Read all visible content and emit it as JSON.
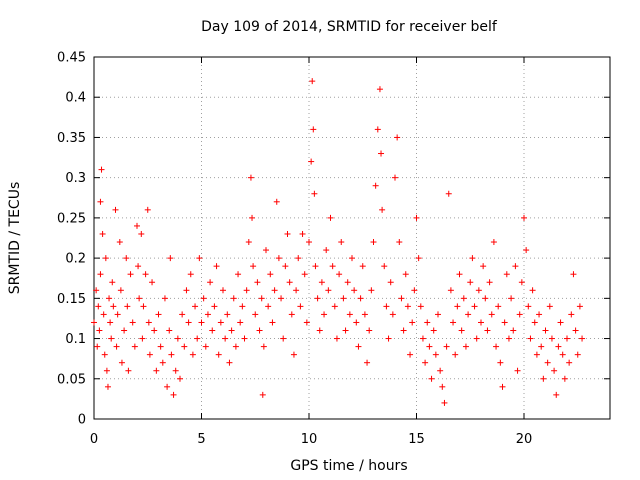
{
  "chart_data": {
    "type": "scatter",
    "title": "Day 109 of 2014, SRMTID for receiver belf",
    "xlabel": "GPS time / hours",
    "ylabel": "SRMTID / TECUs",
    "xlim": [
      0,
      24
    ],
    "ylim": [
      0,
      0.45
    ],
    "xticks": [
      0,
      5,
      10,
      15,
      20
    ],
    "xtick_labels": [
      "0",
      "5",
      "10",
      "15",
      "20"
    ],
    "yticks": [
      0,
      0.05,
      0.1,
      0.15,
      0.2,
      0.25,
      0.3,
      0.35,
      0.4,
      0.45
    ],
    "ytick_labels": [
      "0",
      "0.05",
      "0.1",
      "0.15",
      "0.2",
      "0.25",
      "0.3",
      "0.35",
      "0.4",
      "0.45"
    ],
    "grid": true,
    "marker": "plus",
    "series": [
      {
        "name": "SRMTID",
        "color": "#ff0000",
        "points": [
          [
            0.0,
            0.12
          ],
          [
            0.1,
            0.16
          ],
          [
            0.15,
            0.09
          ],
          [
            0.2,
            0.14
          ],
          [
            0.25,
            0.11
          ],
          [
            0.3,
            0.18
          ],
          [
            0.3,
            0.27
          ],
          [
            0.35,
            0.31
          ],
          [
            0.4,
            0.23
          ],
          [
            0.45,
            0.13
          ],
          [
            0.5,
            0.08
          ],
          [
            0.55,
            0.2
          ],
          [
            0.6,
            0.06
          ],
          [
            0.65,
            0.04
          ],
          [
            0.7,
            0.15
          ],
          [
            0.75,
            0.12
          ],
          [
            0.8,
            0.1
          ],
          [
            0.85,
            0.17
          ],
          [
            0.9,
            0.14
          ],
          [
            1.0,
            0.26
          ],
          [
            1.05,
            0.09
          ],
          [
            1.1,
            0.13
          ],
          [
            1.2,
            0.22
          ],
          [
            1.25,
            0.16
          ],
          [
            1.3,
            0.07
          ],
          [
            1.4,
            0.11
          ],
          [
            1.5,
            0.2
          ],
          [
            1.55,
            0.14
          ],
          [
            1.6,
            0.06
          ],
          [
            1.7,
            0.18
          ],
          [
            1.8,
            0.12
          ],
          [
            1.9,
            0.09
          ],
          [
            2.0,
            0.24
          ],
          [
            2.05,
            0.19
          ],
          [
            2.1,
            0.15
          ],
          [
            2.2,
            0.23
          ],
          [
            2.25,
            0.1
          ],
          [
            2.3,
            0.14
          ],
          [
            2.4,
            0.18
          ],
          [
            2.5,
            0.26
          ],
          [
            2.55,
            0.12
          ],
          [
            2.6,
            0.08
          ],
          [
            2.7,
            0.17
          ],
          [
            2.8,
            0.11
          ],
          [
            2.9,
            0.06
          ],
          [
            3.0,
            0.13
          ],
          [
            3.1,
            0.09
          ],
          [
            3.2,
            0.07
          ],
          [
            3.3,
            0.15
          ],
          [
            3.4,
            0.04
          ],
          [
            3.5,
            0.11
          ],
          [
            3.55,
            0.2
          ],
          [
            3.6,
            0.08
          ],
          [
            3.7,
            0.03
          ],
          [
            3.8,
            0.06
          ],
          [
            3.9,
            0.1
          ],
          [
            4.0,
            0.05
          ],
          [
            4.1,
            0.13
          ],
          [
            4.2,
            0.09
          ],
          [
            4.3,
            0.16
          ],
          [
            4.4,
            0.12
          ],
          [
            4.5,
            0.18
          ],
          [
            4.6,
            0.08
          ],
          [
            4.7,
            0.14
          ],
          [
            4.8,
            0.1
          ],
          [
            4.9,
            0.2
          ],
          [
            5.0,
            0.12
          ],
          [
            5.1,
            0.15
          ],
          [
            5.2,
            0.09
          ],
          [
            5.3,
            0.13
          ],
          [
            5.4,
            0.17
          ],
          [
            5.5,
            0.11
          ],
          [
            5.6,
            0.14
          ],
          [
            5.7,
            0.19
          ],
          [
            5.8,
            0.08
          ],
          [
            5.9,
            0.12
          ],
          [
            6.0,
            0.16
          ],
          [
            6.1,
            0.1
          ],
          [
            6.2,
            0.13
          ],
          [
            6.3,
            0.07
          ],
          [
            6.4,
            0.11
          ],
          [
            6.5,
            0.15
          ],
          [
            6.6,
            0.09
          ],
          [
            6.7,
            0.18
          ],
          [
            6.8,
            0.12
          ],
          [
            6.9,
            0.14
          ],
          [
            7.0,
            0.1
          ],
          [
            7.1,
            0.16
          ],
          [
            7.2,
            0.22
          ],
          [
            7.3,
            0.3
          ],
          [
            7.35,
            0.25
          ],
          [
            7.4,
            0.19
          ],
          [
            7.5,
            0.13
          ],
          [
            7.6,
            0.17
          ],
          [
            7.7,
            0.11
          ],
          [
            7.8,
            0.15
          ],
          [
            7.85,
            0.03
          ],
          [
            7.9,
            0.09
          ],
          [
            8.0,
            0.21
          ],
          [
            8.1,
            0.14
          ],
          [
            8.2,
            0.18
          ],
          [
            8.3,
            0.12
          ],
          [
            8.4,
            0.16
          ],
          [
            8.5,
            0.27
          ],
          [
            8.6,
            0.2
          ],
          [
            8.7,
            0.15
          ],
          [
            8.8,
            0.1
          ],
          [
            8.9,
            0.19
          ],
          [
            9.0,
            0.23
          ],
          [
            9.1,
            0.17
          ],
          [
            9.2,
            0.13
          ],
          [
            9.3,
            0.08
          ],
          [
            9.4,
            0.16
          ],
          [
            9.5,
            0.2
          ],
          [
            9.6,
            0.14
          ],
          [
            9.7,
            0.23
          ],
          [
            9.8,
            0.18
          ],
          [
            9.9,
            0.12
          ],
          [
            10.0,
            0.22
          ],
          [
            10.1,
            0.32
          ],
          [
            10.15,
            0.42
          ],
          [
            10.2,
            0.36
          ],
          [
            10.25,
            0.28
          ],
          [
            10.3,
            0.19
          ],
          [
            10.4,
            0.15
          ],
          [
            10.5,
            0.11
          ],
          [
            10.6,
            0.17
          ],
          [
            10.7,
            0.13
          ],
          [
            10.8,
            0.21
          ],
          [
            10.9,
            0.16
          ],
          [
            11.0,
            0.25
          ],
          [
            11.1,
            0.19
          ],
          [
            11.2,
            0.14
          ],
          [
            11.3,
            0.1
          ],
          [
            11.4,
            0.18
          ],
          [
            11.5,
            0.22
          ],
          [
            11.6,
            0.15
          ],
          [
            11.7,
            0.11
          ],
          [
            11.8,
            0.17
          ],
          [
            11.9,
            0.13
          ],
          [
            12.0,
            0.2
          ],
          [
            12.1,
            0.16
          ],
          [
            12.2,
            0.12
          ],
          [
            12.3,
            0.09
          ],
          [
            12.4,
            0.15
          ],
          [
            12.5,
            0.19
          ],
          [
            12.6,
            0.13
          ],
          [
            12.7,
            0.07
          ],
          [
            12.8,
            0.11
          ],
          [
            12.9,
            0.16
          ],
          [
            13.0,
            0.22
          ],
          [
            13.1,
            0.29
          ],
          [
            13.2,
            0.36
          ],
          [
            13.3,
            0.41
          ],
          [
            13.35,
            0.33
          ],
          [
            13.4,
            0.26
          ],
          [
            13.5,
            0.19
          ],
          [
            13.6,
            0.14
          ],
          [
            13.7,
            0.1
          ],
          [
            13.8,
            0.17
          ],
          [
            13.9,
            0.13
          ],
          [
            14.0,
            0.3
          ],
          [
            14.1,
            0.35
          ],
          [
            14.2,
            0.22
          ],
          [
            14.3,
            0.15
          ],
          [
            14.4,
            0.11
          ],
          [
            14.5,
            0.18
          ],
          [
            14.6,
            0.14
          ],
          [
            14.7,
            0.08
          ],
          [
            14.8,
            0.12
          ],
          [
            14.9,
            0.16
          ],
          [
            15.0,
            0.25
          ],
          [
            15.1,
            0.2
          ],
          [
            15.2,
            0.14
          ],
          [
            15.3,
            0.1
          ],
          [
            15.4,
            0.07
          ],
          [
            15.5,
            0.12
          ],
          [
            15.6,
            0.09
          ],
          [
            15.7,
            0.05
          ],
          [
            15.8,
            0.11
          ],
          [
            15.9,
            0.08
          ],
          [
            16.0,
            0.13
          ],
          [
            16.1,
            0.06
          ],
          [
            16.2,
            0.04
          ],
          [
            16.3,
            0.02
          ],
          [
            16.4,
            0.09
          ],
          [
            16.5,
            0.28
          ],
          [
            16.6,
            0.16
          ],
          [
            16.7,
            0.12
          ],
          [
            16.8,
            0.08
          ],
          [
            16.9,
            0.14
          ],
          [
            17.0,
            0.18
          ],
          [
            17.1,
            0.11
          ],
          [
            17.2,
            0.15
          ],
          [
            17.3,
            0.09
          ],
          [
            17.4,
            0.13
          ],
          [
            17.5,
            0.17
          ],
          [
            17.6,
            0.2
          ],
          [
            17.7,
            0.14
          ],
          [
            17.8,
            0.1
          ],
          [
            17.9,
            0.16
          ],
          [
            18.0,
            0.12
          ],
          [
            18.1,
            0.19
          ],
          [
            18.2,
            0.15
          ],
          [
            18.3,
            0.11
          ],
          [
            18.4,
            0.17
          ],
          [
            18.5,
            0.13
          ],
          [
            18.6,
            0.22
          ],
          [
            18.7,
            0.09
          ],
          [
            18.8,
            0.14
          ],
          [
            18.9,
            0.07
          ],
          [
            19.0,
            0.04
          ],
          [
            19.1,
            0.12
          ],
          [
            19.2,
            0.18
          ],
          [
            19.3,
            0.1
          ],
          [
            19.4,
            0.15
          ],
          [
            19.5,
            0.11
          ],
          [
            19.6,
            0.19
          ],
          [
            19.7,
            0.06
          ],
          [
            19.8,
            0.13
          ],
          [
            19.9,
            0.17
          ],
          [
            20.0,
            0.25
          ],
          [
            20.1,
            0.21
          ],
          [
            20.2,
            0.14
          ],
          [
            20.3,
            0.1
          ],
          [
            20.4,
            0.16
          ],
          [
            20.5,
            0.12
          ],
          [
            20.6,
            0.08
          ],
          [
            20.7,
            0.13
          ],
          [
            20.8,
            0.09
          ],
          [
            20.9,
            0.05
          ],
          [
            21.0,
            0.11
          ],
          [
            21.1,
            0.07
          ],
          [
            21.2,
            0.14
          ],
          [
            21.3,
            0.1
          ],
          [
            21.4,
            0.06
          ],
          [
            21.5,
            0.03
          ],
          [
            21.6,
            0.09
          ],
          [
            21.7,
            0.12
          ],
          [
            21.8,
            0.08
          ],
          [
            21.9,
            0.05
          ],
          [
            22.0,
            0.1
          ],
          [
            22.1,
            0.07
          ],
          [
            22.2,
            0.13
          ],
          [
            22.3,
            0.18
          ],
          [
            22.4,
            0.11
          ],
          [
            22.5,
            0.08
          ],
          [
            22.6,
            0.14
          ],
          [
            22.7,
            0.1
          ]
        ]
      }
    ]
  }
}
